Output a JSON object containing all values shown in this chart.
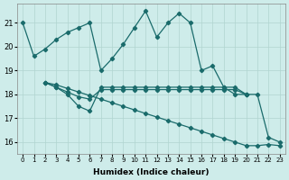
{
  "xlabel": "Humidex (Indice chaleur)",
  "background_color": "#ceecea",
  "grid_color": "#b0d4d0",
  "line_color": "#1a6b6b",
  "ylim": [
    15.5,
    21.8
  ],
  "yticks": [
    16,
    17,
    18,
    19,
    20,
    21
  ],
  "xticks": [
    0,
    1,
    2,
    3,
    4,
    5,
    6,
    7,
    8,
    9,
    10,
    11,
    12,
    13,
    14,
    15,
    16,
    17,
    18,
    19,
    20,
    21,
    22,
    23
  ],
  "line1_x": [
    0,
    1,
    2,
    3,
    4,
    5,
    6,
    7,
    8,
    9,
    10,
    11,
    12,
    13,
    14,
    15,
    16,
    17,
    18,
    19,
    20,
    21,
    22,
    23
  ],
  "line1_y": [
    21.0,
    19.6,
    19.9,
    20.3,
    20.6,
    20.8,
    21.0,
    19.0,
    19.5,
    20.1,
    20.8,
    21.5,
    20.4,
    21.0,
    21.4,
    21.0,
    19.0,
    19.2,
    18.3,
    18.0,
    18.0,
    18.0,
    16.2,
    16.0
  ],
  "line2_x": [
    2,
    3,
    4,
    5,
    6,
    7,
    8,
    9,
    10,
    11,
    12,
    13,
    14,
    15,
    16,
    17,
    18,
    19,
    20
  ],
  "line2_y": [
    18.5,
    18.3,
    18.0,
    17.5,
    17.3,
    18.3,
    18.3,
    18.3,
    18.3,
    18.3,
    18.3,
    18.3,
    18.3,
    18.3,
    18.3,
    18.3,
    18.3,
    18.3,
    18.0
  ],
  "line3_x": [
    2,
    3,
    4,
    5,
    6,
    7,
    8,
    9,
    10,
    11,
    12,
    13,
    14,
    15,
    16,
    17,
    18,
    19,
    20
  ],
  "line3_y": [
    18.5,
    18.3,
    18.1,
    17.9,
    17.8,
    18.2,
    18.2,
    18.2,
    18.2,
    18.2,
    18.2,
    18.2,
    18.2,
    18.2,
    18.2,
    18.2,
    18.2,
    18.2,
    18.0
  ],
  "line4_x": [
    2,
    3,
    4,
    5,
    6,
    7,
    8,
    9,
    10,
    11,
    12,
    13,
    14,
    15,
    16,
    17,
    18,
    19,
    20,
    21,
    22,
    23
  ],
  "line4_y": [
    18.5,
    18.4,
    18.25,
    18.1,
    17.95,
    17.8,
    17.65,
    17.5,
    17.35,
    17.2,
    17.05,
    16.9,
    16.75,
    16.6,
    16.45,
    16.3,
    16.15,
    16.0,
    15.85,
    15.85,
    15.9,
    15.85
  ]
}
